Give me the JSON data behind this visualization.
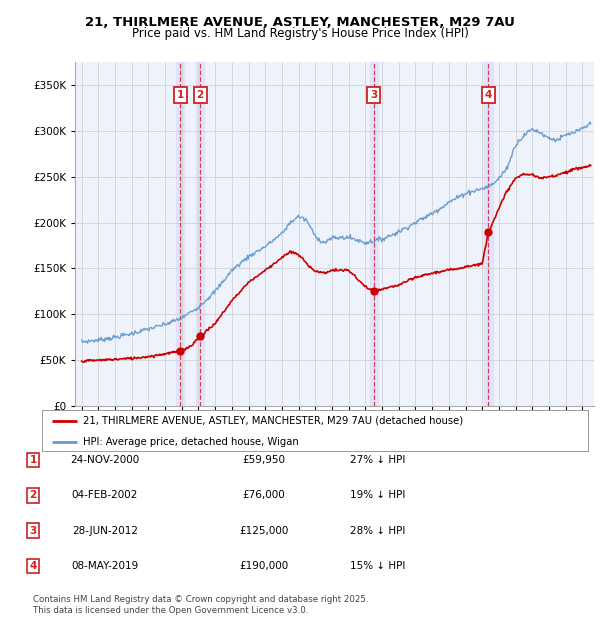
{
  "title": "21, THIRLMERE AVENUE, ASTLEY, MANCHESTER, M29 7AU",
  "subtitle": "Price paid vs. HM Land Registry's House Price Index (HPI)",
  "legend_line1": "21, THIRLMERE AVENUE, ASTLEY, MANCHESTER, M29 7AU (detached house)",
  "legend_line2": "HPI: Average price, detached house, Wigan",
  "footer1": "Contains HM Land Registry data © Crown copyright and database right 2025.",
  "footer2": "This data is licensed under the Open Government Licence v3.0.",
  "transactions": [
    {
      "num": 1,
      "date": "24-NOV-2000",
      "price": "£59,950",
      "pct": "27% ↓ HPI",
      "year": 2000.9
    },
    {
      "num": 2,
      "date": "04-FEB-2002",
      "price": "£76,000",
      "pct": "19% ↓ HPI",
      "year": 2002.1
    },
    {
      "num": 3,
      "date": "28-JUN-2012",
      "price": "£125,000",
      "pct": "28% ↓ HPI",
      "year": 2012.5
    },
    {
      "num": 4,
      "date": "08-MAY-2019",
      "price": "£190,000",
      "pct": "15% ↓ HPI",
      "year": 2019.37
    }
  ],
  "transaction_prices": [
    59950,
    76000,
    125000,
    190000
  ],
  "hpi_color": "#6699cc",
  "price_color": "#cc0000",
  "vline_color": "#cc2222",
  "vspan_color": "#ddddff",
  "background_plot": "#eef2fa",
  "background_fig": "#ffffff",
  "grid_color": "#cccccc",
  "ylim": [
    0,
    375000
  ],
  "yticks": [
    0,
    50000,
    100000,
    150000,
    200000,
    250000,
    300000,
    350000
  ],
  "xlim_start": 1994.6,
  "xlim_end": 2025.7,
  "hpi_knots_x": [
    1995,
    1996,
    1997,
    1998,
    1999,
    2000,
    2001,
    2002,
    2003,
    2004,
    2005,
    2006,
    2007,
    2007.5,
    2008,
    2008.5,
    2009,
    2009.5,
    2010,
    2011,
    2012,
    2013,
    2014,
    2015,
    2016,
    2017,
    2018,
    2019,
    2019.5,
    2020,
    2020.5,
    2021,
    2021.5,
    2022,
    2022.5,
    2023,
    2023.5,
    2024,
    2024.5,
    2025,
    2025.5
  ],
  "hpi_knots_y": [
    70000,
    72000,
    75000,
    79000,
    84000,
    89000,
    96000,
    108000,
    125000,
    148000,
    163000,
    174000,
    188000,
    200000,
    207000,
    202000,
    185000,
    178000,
    183000,
    184000,
    178000,
    182000,
    190000,
    200000,
    210000,
    222000,
    232000,
    237000,
    240000,
    248000,
    260000,
    285000,
    295000,
    302000,
    298000,
    292000,
    290000,
    295000,
    298000,
    302000,
    308000
  ],
  "price_knots_x": [
    1995,
    1996,
    1997,
    1998,
    1999,
    2000,
    2000.9,
    2001.5,
    2002.1,
    2003,
    2004,
    2005,
    2006,
    2007,
    2007.5,
    2008,
    2008.5,
    2009,
    2009.5,
    2010,
    2011,
    2012,
    2012.5,
    2013,
    2014,
    2015,
    2016,
    2017,
    2018,
    2019,
    2019.37,
    2020,
    2020.5,
    2021,
    2021.5,
    2022,
    2022.5,
    2023,
    2023.5,
    2024,
    2024.5,
    2025,
    2025.5
  ],
  "price_knots_y": [
    49000,
    50000,
    51000,
    52000,
    54000,
    57000,
    59950,
    65000,
    76000,
    90000,
    115000,
    135000,
    148000,
    162000,
    168000,
    165000,
    155000,
    147000,
    145000,
    148000,
    148000,
    130000,
    125000,
    127000,
    132000,
    140000,
    145000,
    148000,
    152000,
    155000,
    190000,
    215000,
    235000,
    248000,
    253000,
    252000,
    248000,
    250000,
    252000,
    255000,
    258000,
    260000,
    262000
  ]
}
